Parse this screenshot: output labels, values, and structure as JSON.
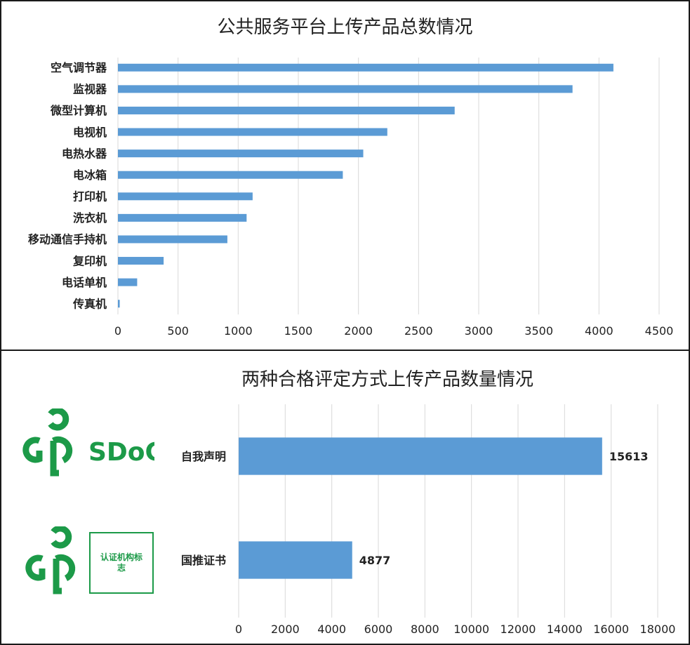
{
  "chart_data": [
    {
      "type": "bar",
      "orientation": "horizontal",
      "title": "公共服务平台上传产品总数情况",
      "categories": [
        "空气调节器",
        "监视器",
        "微型计算机",
        "电视机",
        "电热水器",
        "电冰箱",
        "打印机",
        "洗衣机",
        "移动通信手持机",
        "复印机",
        "电话单机",
        "传真机"
      ],
      "values": [
        4120,
        3780,
        2800,
        2240,
        2040,
        1870,
        1120,
        1070,
        910,
        380,
        160,
        15
      ],
      "xlim": [
        0,
        4500
      ],
      "ticks": [
        "0",
        "500",
        "1000",
        "1500",
        "2000",
        "2500",
        "3000",
        "3500",
        "4000",
        "4500"
      ],
      "grid": true,
      "color": "#5b9bd5"
    },
    {
      "type": "bar",
      "orientation": "horizontal",
      "title": "两种合格评定方式上传产品数量情况",
      "categories": [
        "自我声明",
        "国推证书"
      ],
      "values": [
        15613,
        4877
      ],
      "data_labels": [
        "15613",
        "4877"
      ],
      "xlim": [
        0,
        18000
      ],
      "ticks": [
        "0",
        "2000",
        "4000",
        "6000",
        "8000",
        "10000",
        "12000",
        "14000",
        "16000",
        "18000"
      ],
      "grid": true,
      "color": "#5b9bd5"
    }
  ],
  "logos": {
    "sdoc_text": "SDoC",
    "cert_box_text": "认证机构标志",
    "color": "#1c9a48"
  }
}
